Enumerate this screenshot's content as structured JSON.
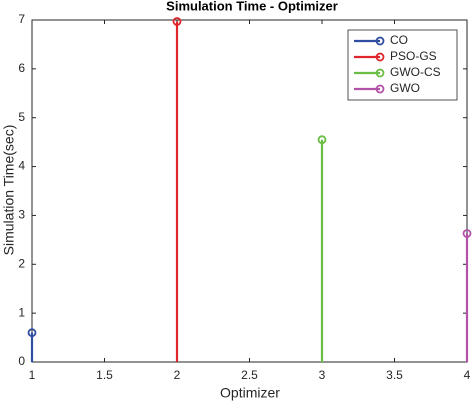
{
  "chart_data": {
    "type": "stem",
    "title": "Simulation Time - Optimizer",
    "xlabel": "Optimizer",
    "ylabel": "Simulation Time(sec)",
    "xlim": [
      1,
      4
    ],
    "xticks": [
      1,
      1.5,
      2,
      2.5,
      3,
      3.5,
      4
    ],
    "ylim": [
      0,
      7
    ],
    "yticks": [
      0,
      1,
      2,
      3,
      4,
      5,
      6,
      7
    ],
    "legend": "top-right",
    "series": [
      {
        "name": "CO",
        "color": "#2f4ea2",
        "x": [
          1
        ],
        "values": [
          0.6
        ]
      },
      {
        "name": "PSO-GS",
        "color": "#e0262a",
        "x": [
          2
        ],
        "values": [
          6.97
        ]
      },
      {
        "name": "GWO-CS",
        "color": "#6abd45",
        "x": [
          3
        ],
        "values": [
          4.55
        ]
      },
      {
        "name": "GWO",
        "color": "#b352a9",
        "x": [
          4
        ],
        "values": [
          2.63
        ]
      }
    ]
  }
}
